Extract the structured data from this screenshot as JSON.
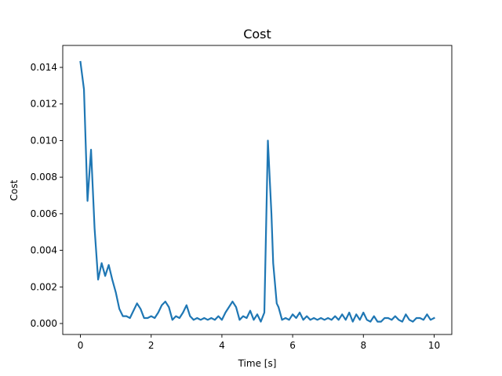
{
  "chart_data": {
    "type": "line",
    "title": "Cost",
    "xlabel": "Time [s]",
    "ylabel": "Cost",
    "xlim": [
      -0.5,
      10.5
    ],
    "ylim": [
      -0.0006,
      0.0152
    ],
    "x_ticks": [
      0,
      2,
      4,
      6,
      8,
      10
    ],
    "x_tick_labels": [
      "0",
      "2",
      "4",
      "6",
      "8",
      "10"
    ],
    "y_ticks": [
      0.0,
      0.002,
      0.004,
      0.006,
      0.008,
      0.01,
      0.012,
      0.014
    ],
    "y_tick_labels": [
      "0.000",
      "0.002",
      "0.004",
      "0.006",
      "0.008",
      "0.010",
      "0.012",
      "0.014"
    ],
    "grid": false,
    "legend": "none",
    "series": [
      {
        "color": "#1f77b4",
        "x": [
          0.0,
          0.1,
          0.2,
          0.3,
          0.4,
          0.5,
          0.6,
          0.7,
          0.8,
          0.9,
          1.0,
          1.1,
          1.2,
          1.3,
          1.4,
          1.5,
          1.6,
          1.7,
          1.8,
          1.9,
          2.0,
          2.1,
          2.2,
          2.3,
          2.4,
          2.5,
          2.6,
          2.7,
          2.8,
          2.9,
          3.0,
          3.1,
          3.2,
          3.3,
          3.4,
          3.5,
          3.6,
          3.7,
          3.8,
          3.9,
          4.0,
          4.1,
          4.2,
          4.3,
          4.4,
          4.5,
          4.6,
          4.7,
          4.8,
          4.9,
          5.0,
          5.1,
          5.2,
          5.3,
          5.4,
          5.45,
          5.55,
          5.6,
          5.7,
          5.8,
          5.9,
          6.0,
          6.1,
          6.2,
          6.3,
          6.4,
          6.5,
          6.6,
          6.7,
          6.8,
          6.9,
          7.0,
          7.1,
          7.2,
          7.3,
          7.4,
          7.5,
          7.6,
          7.7,
          7.8,
          7.9,
          8.0,
          8.1,
          8.2,
          8.3,
          8.4,
          8.5,
          8.6,
          8.7,
          8.8,
          8.9,
          9.0,
          9.1,
          9.2,
          9.3,
          9.4,
          9.5,
          9.6,
          9.7,
          9.8,
          9.9,
          10.0
        ],
        "y": [
          0.0143,
          0.0128,
          0.0067,
          0.0095,
          0.0052,
          0.0024,
          0.0033,
          0.0026,
          0.0032,
          0.0024,
          0.0017,
          0.0008,
          0.0004,
          0.0004,
          0.0003,
          0.0007,
          0.0011,
          0.0008,
          0.0003,
          0.0003,
          0.0004,
          0.0003,
          0.0006,
          0.001,
          0.0012,
          0.0009,
          0.0002,
          0.0004,
          0.0003,
          0.0006,
          0.001,
          0.0004,
          0.0002,
          0.0003,
          0.0002,
          0.0003,
          0.0002,
          0.0003,
          0.0002,
          0.0004,
          0.0002,
          0.0006,
          0.0009,
          0.0012,
          0.0009,
          0.0002,
          0.0004,
          0.0003,
          0.0007,
          0.0002,
          0.0005,
          0.0001,
          0.0006,
          0.01,
          0.006,
          0.0033,
          0.0011,
          0.0009,
          0.0002,
          0.0003,
          0.0002,
          0.0005,
          0.0003,
          0.0006,
          0.0002,
          0.0004,
          0.0002,
          0.0003,
          0.0002,
          0.0003,
          0.0002,
          0.0003,
          0.0002,
          0.0004,
          0.0002,
          0.0005,
          0.0002,
          0.0006,
          0.0001,
          0.0005,
          0.0002,
          0.0006,
          0.0002,
          0.0001,
          0.0004,
          0.0001,
          0.0001,
          0.0003,
          0.0003,
          0.0002,
          0.0004,
          0.0002,
          0.0001,
          0.0005,
          0.0002,
          0.0001,
          0.0003,
          0.0003,
          0.0002,
          0.0005,
          0.0002,
          0.0003
        ]
      }
    ]
  }
}
